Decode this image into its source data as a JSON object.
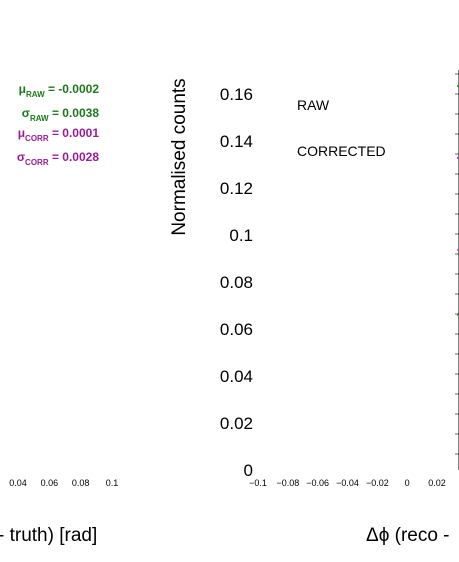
{
  "chart_data": {
    "type": "line",
    "left_panel": {
      "x_tick_labels": [
        "0.04",
        "0.06",
        "0.08",
        "0.1"
      ],
      "x_tick_values": [
        0.04,
        0.06,
        0.08,
        0.1
      ],
      "xlabel_fragment": "- truth)  [rad]",
      "annotations": [
        {
          "symbol": "μ",
          "subscript": "RAW",
          "text": " = -0.0002",
          "color": "#1a7a1a"
        },
        {
          "symbol": "σ",
          "subscript": "RAW",
          "text": " = 0.0038",
          "color": "#1a7a1a"
        },
        {
          "symbol": "μ",
          "subscript": "CORR",
          "text": " = 0.0001",
          "color": "#9a1a9a"
        },
        {
          "symbol": "σ",
          "subscript": "CORR",
          "text": " = 0.0028",
          "color": "#9a1a9a"
        }
      ]
    },
    "right_panel": {
      "ylabel": "Normalised counts",
      "xlabel_fragment": "Δϕ  (reco -",
      "y_ticks": [
        0,
        0.02,
        0.04,
        0.06,
        0.08,
        0.1,
        0.12,
        0.14,
        0.16
      ],
      "y_tick_labels": [
        "0",
        "0.02",
        "0.04",
        "0.06",
        "0.08",
        "0.1",
        "0.12",
        "0.14",
        "0.16"
      ],
      "ylim": [
        0,
        0.17
      ],
      "x_ticks": [
        -0.1,
        -0.08,
        -0.06,
        -0.04,
        -0.02,
        0,
        0.02
      ],
      "x_tick_labels": [
        "−0.1",
        "−0.08",
        "−0.06",
        "−0.04",
        "−0.02",
        "0",
        "0.02"
      ],
      "legend": [
        {
          "label": "RAW",
          "color": "#1a7a1a"
        },
        {
          "label": "CORRECTED",
          "color": "#9a1a9a"
        }
      ]
    }
  }
}
